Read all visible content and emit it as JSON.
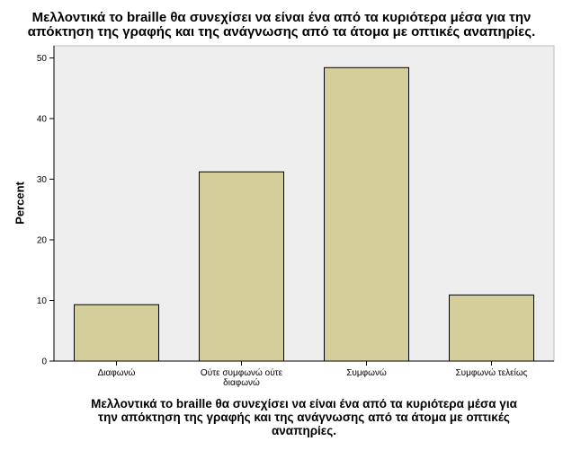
{
  "chart_data": {
    "type": "bar",
    "title_lines": [
      "Μελλοντικά το braille θα συνεχίσει να είναι ένα από τα κυριότερα μέσα για την",
      "απόκτηση της γραφής και της ανάγνωσης από τα άτομα με οπτικές αναπηρίες."
    ],
    "xlabel_lines": [
      "Μελλοντικά το braille θα συνεχίσει να είναι ένα από τα κυριότερα μέσα για",
      "την απόκτηση της γραφής και της ανάγνωσης από τα άτομα με οπτικές",
      "αναπηρίες."
    ],
    "ylabel": "Percent",
    "categories": [
      [
        "Διαφωνώ"
      ],
      [
        "Ούτε συμφωνώ ούτε",
        "διαφωνώ"
      ],
      [
        "Συμφωνώ"
      ],
      [
        "Συμφωνώ τελείως"
      ]
    ],
    "values": [
      9.3,
      31.2,
      48.4,
      10.9
    ],
    "ylim": [
      0,
      52
    ],
    "yticks": [
      0,
      10,
      20,
      30,
      40,
      50
    ],
    "grid": false,
    "colors": {
      "plot_background": "#eeeeee",
      "bar_fill": "#d4cf9a",
      "bar_stroke": "#000000",
      "axis": "#000000"
    }
  }
}
